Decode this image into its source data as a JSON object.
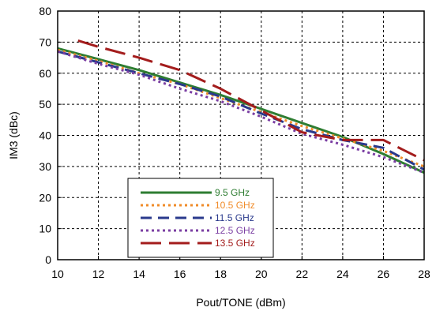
{
  "chart_data": {
    "type": "line",
    "xlabel": "Pout/TONE (dBm)",
    "ylabel": "IM3 (dBc)",
    "xlim": [
      10,
      28
    ],
    "ylim": [
      0,
      80
    ],
    "x_ticks": [
      "10",
      "12",
      "14",
      "16",
      "18",
      "20",
      "22",
      "24",
      "26",
      "28"
    ],
    "y_ticks": [
      "0",
      "10",
      "20",
      "30",
      "40",
      "50",
      "60",
      "70",
      "80"
    ],
    "grid": true,
    "legend_position": "lower-left",
    "series": [
      {
        "name": "9.5 GHz",
        "color": "#2e7d32",
        "style": "solid",
        "x": [
          10,
          12,
          14,
          16,
          18,
          20,
          22,
          24,
          26,
          28
        ],
        "y": [
          68,
          64.5,
          61,
          57,
          53,
          48.5,
          44,
          39.5,
          34,
          28
        ]
      },
      {
        "name": "10.5 GHz",
        "color": "#f08c2a",
        "style": "dotted",
        "x": [
          10,
          12,
          14,
          16,
          18,
          20,
          22,
          24,
          26,
          28
        ],
        "y": [
          67.5,
          64,
          60,
          56.5,
          52,
          47.5,
          43,
          39,
          35,
          30
        ]
      },
      {
        "name": "11.5 GHz",
        "color": "#2a3a8c",
        "style": "dashed",
        "x": [
          10,
          12,
          14,
          16,
          18,
          20,
          22,
          24,
          26,
          28
        ],
        "y": [
          67,
          63.5,
          60,
          56.5,
          52.5,
          47,
          42,
          38.5,
          36,
          29
        ]
      },
      {
        "name": "12.5 GHz",
        "color": "#7b3fa3",
        "style": "dotted",
        "x": [
          10,
          12,
          14,
          16,
          18,
          20,
          22,
          24,
          26,
          28
        ],
        "y": [
          67,
          63,
          59.5,
          55,
          51,
          46,
          40.5,
          37,
          33,
          28
        ]
      },
      {
        "name": "13.5 GHz",
        "color": "#a31c1c",
        "style": "longdash",
        "x": [
          11,
          12,
          14,
          16,
          18,
          20,
          22,
          24,
          26,
          28
        ],
        "y": [
          70.5,
          68.5,
          65,
          61,
          55,
          48,
          41,
          38.5,
          38.5,
          32
        ]
      }
    ]
  }
}
